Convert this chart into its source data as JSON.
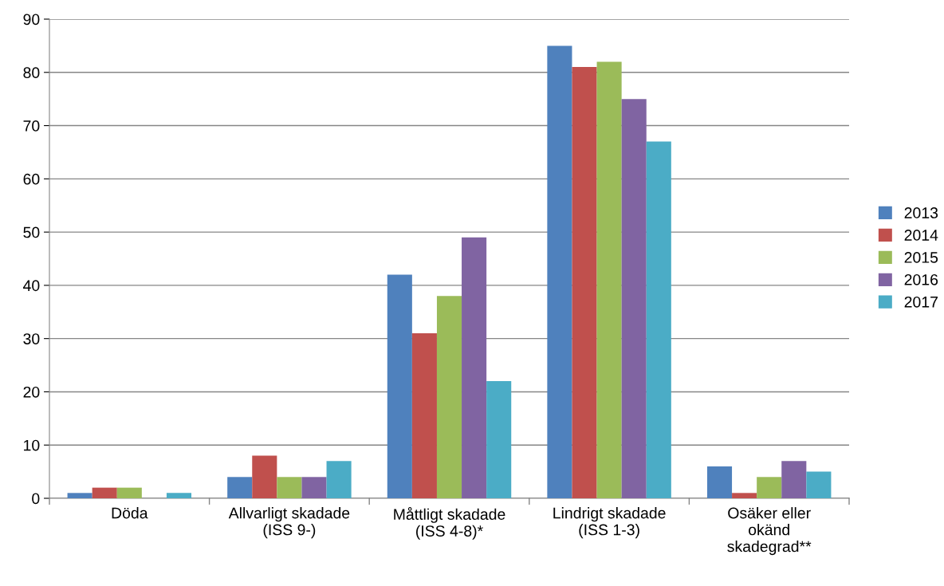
{
  "chart_data": {
    "type": "bar",
    "categories": [
      "Döda",
      "Allvarligt skadade\n(ISS 9-)",
      "Måttligt skadade\n(ISS 4-8)*",
      "Lindrigt skadade\n(ISS 1-3)",
      "Osäker eller\nokänd\nskadegrad**"
    ],
    "series": [
      {
        "name": "2013",
        "color": "#4f81bd",
        "values": [
          1,
          4,
          42,
          85,
          6
        ]
      },
      {
        "name": "2014",
        "color": "#c0504d",
        "values": [
          2,
          8,
          31,
          81,
          1
        ]
      },
      {
        "name": "2015",
        "color": "#9bbb59",
        "values": [
          2,
          4,
          38,
          82,
          4
        ]
      },
      {
        "name": "2016",
        "color": "#8064a2",
        "values": [
          0,
          4,
          49,
          75,
          7
        ]
      },
      {
        "name": "2017",
        "color": "#4bacc6",
        "values": [
          1,
          7,
          22,
          67,
          5
        ]
      }
    ],
    "ylim": [
      0,
      90
    ],
    "yticks": [
      0,
      10,
      20,
      30,
      40,
      50,
      60,
      70,
      80,
      90
    ],
    "grid": "y",
    "legend": "right"
  }
}
